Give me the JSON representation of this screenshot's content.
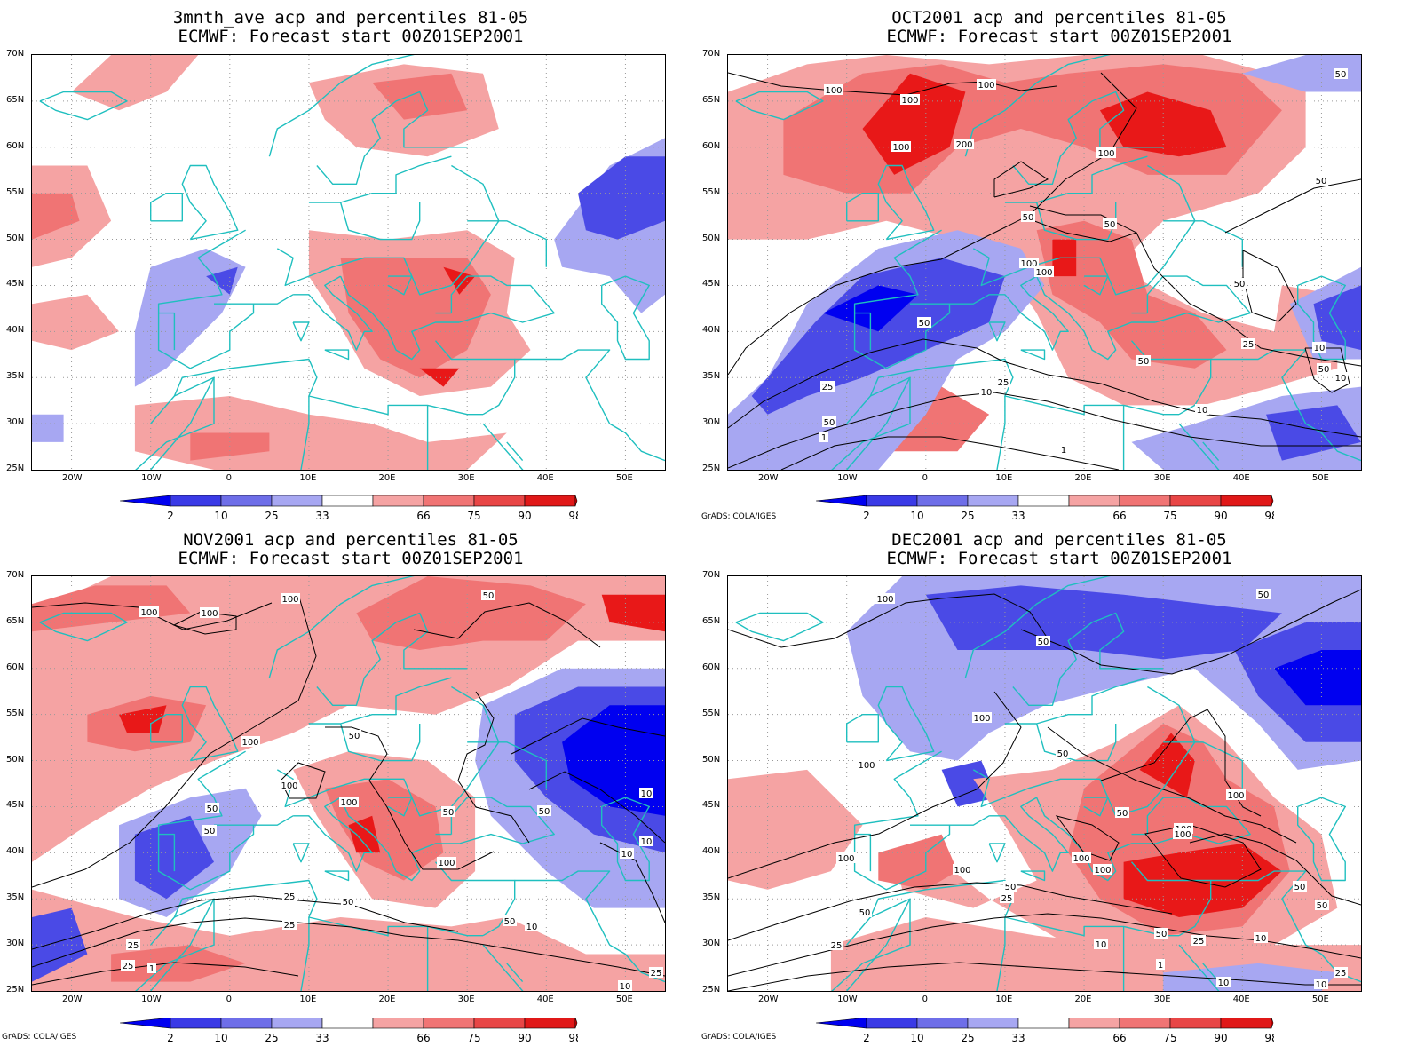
{
  "panels": [
    {
      "title_line1": "3mnth_ave acp and percentiles 81-05",
      "title_line2": "ECMWF: Forecast start 00Z01SEP2001",
      "contour_labels": []
    },
    {
      "title_line1": "OCT2001 acp and percentiles 81-05",
      "title_line2": "ECMWF: Forecast start 00Z01SEP2001",
      "contour_labels": [
        "100",
        "100",
        "100",
        "100",
        "200",
        "100",
        "50",
        "50",
        "100",
        "100",
        "50",
        "50",
        "50",
        "50",
        "25",
        "10",
        "25",
        "25",
        "50",
        "10",
        "10",
        "1",
        "1",
        "50",
        "10",
        "50"
      ]
    },
    {
      "title_line1": "NOV2001 acp and percentiles 81-05",
      "title_line2": "ECMWF: Forecast start 00Z01SEP2001",
      "contour_labels": [
        "100",
        "100",
        "100",
        "50",
        "50",
        "100",
        "50",
        "100",
        "100",
        "50",
        "100",
        "25",
        "50",
        "10",
        "50",
        "50",
        "25",
        "50",
        "25",
        "10",
        "25",
        "10",
        "10",
        "1",
        "25",
        "10"
      ]
    },
    {
      "title_line1": "DEC2001 acp and percentiles 81-05",
      "title_line2": "ECMWF: Forecast start 00Z01SEP2001",
      "contour_labels": [
        "100",
        "50",
        "50",
        "100",
        "100",
        "100",
        "50",
        "100",
        "50",
        "100",
        "100",
        "100",
        "100",
        "50",
        "25",
        "50",
        "100",
        "50",
        "25",
        "10",
        "50",
        "10",
        "25",
        "50",
        "1",
        "10",
        "10",
        "25"
      ]
    }
  ],
  "lat_ticks": [
    "70N",
    "65N",
    "60N",
    "55N",
    "50N",
    "45N",
    "40N",
    "35N",
    "30N",
    "25N"
  ],
  "lon_ticks": [
    "20W",
    "10W",
    "0",
    "10E",
    "20E",
    "30E",
    "40E",
    "50E"
  ],
  "colorbar": {
    "labels": [
      "2",
      "10",
      "25",
      "33",
      "66",
      "75",
      "90",
      "98"
    ],
    "colors": [
      "#0000f0",
      "#3a3ae6",
      "#6e6ee8",
      "#a7a7f2",
      "#ffffff",
      "#f5a3a3",
      "#f07474",
      "#e84646",
      "#e01818",
      "#ff0000"
    ]
  },
  "credit": "GrADS: COLA/IGES",
  "colors": {
    "coast": "#1fbfbf",
    "contour": "#000000",
    "frame": "#000000"
  },
  "legend_colors": {
    "blue_strong": "#0000f0",
    "blue_mid": "#4a4ae6",
    "blue_light": "#a7a7f2",
    "red_light": "#f5a3a3",
    "red_mid": "#f07474",
    "red_strong": "#e81818"
  }
}
